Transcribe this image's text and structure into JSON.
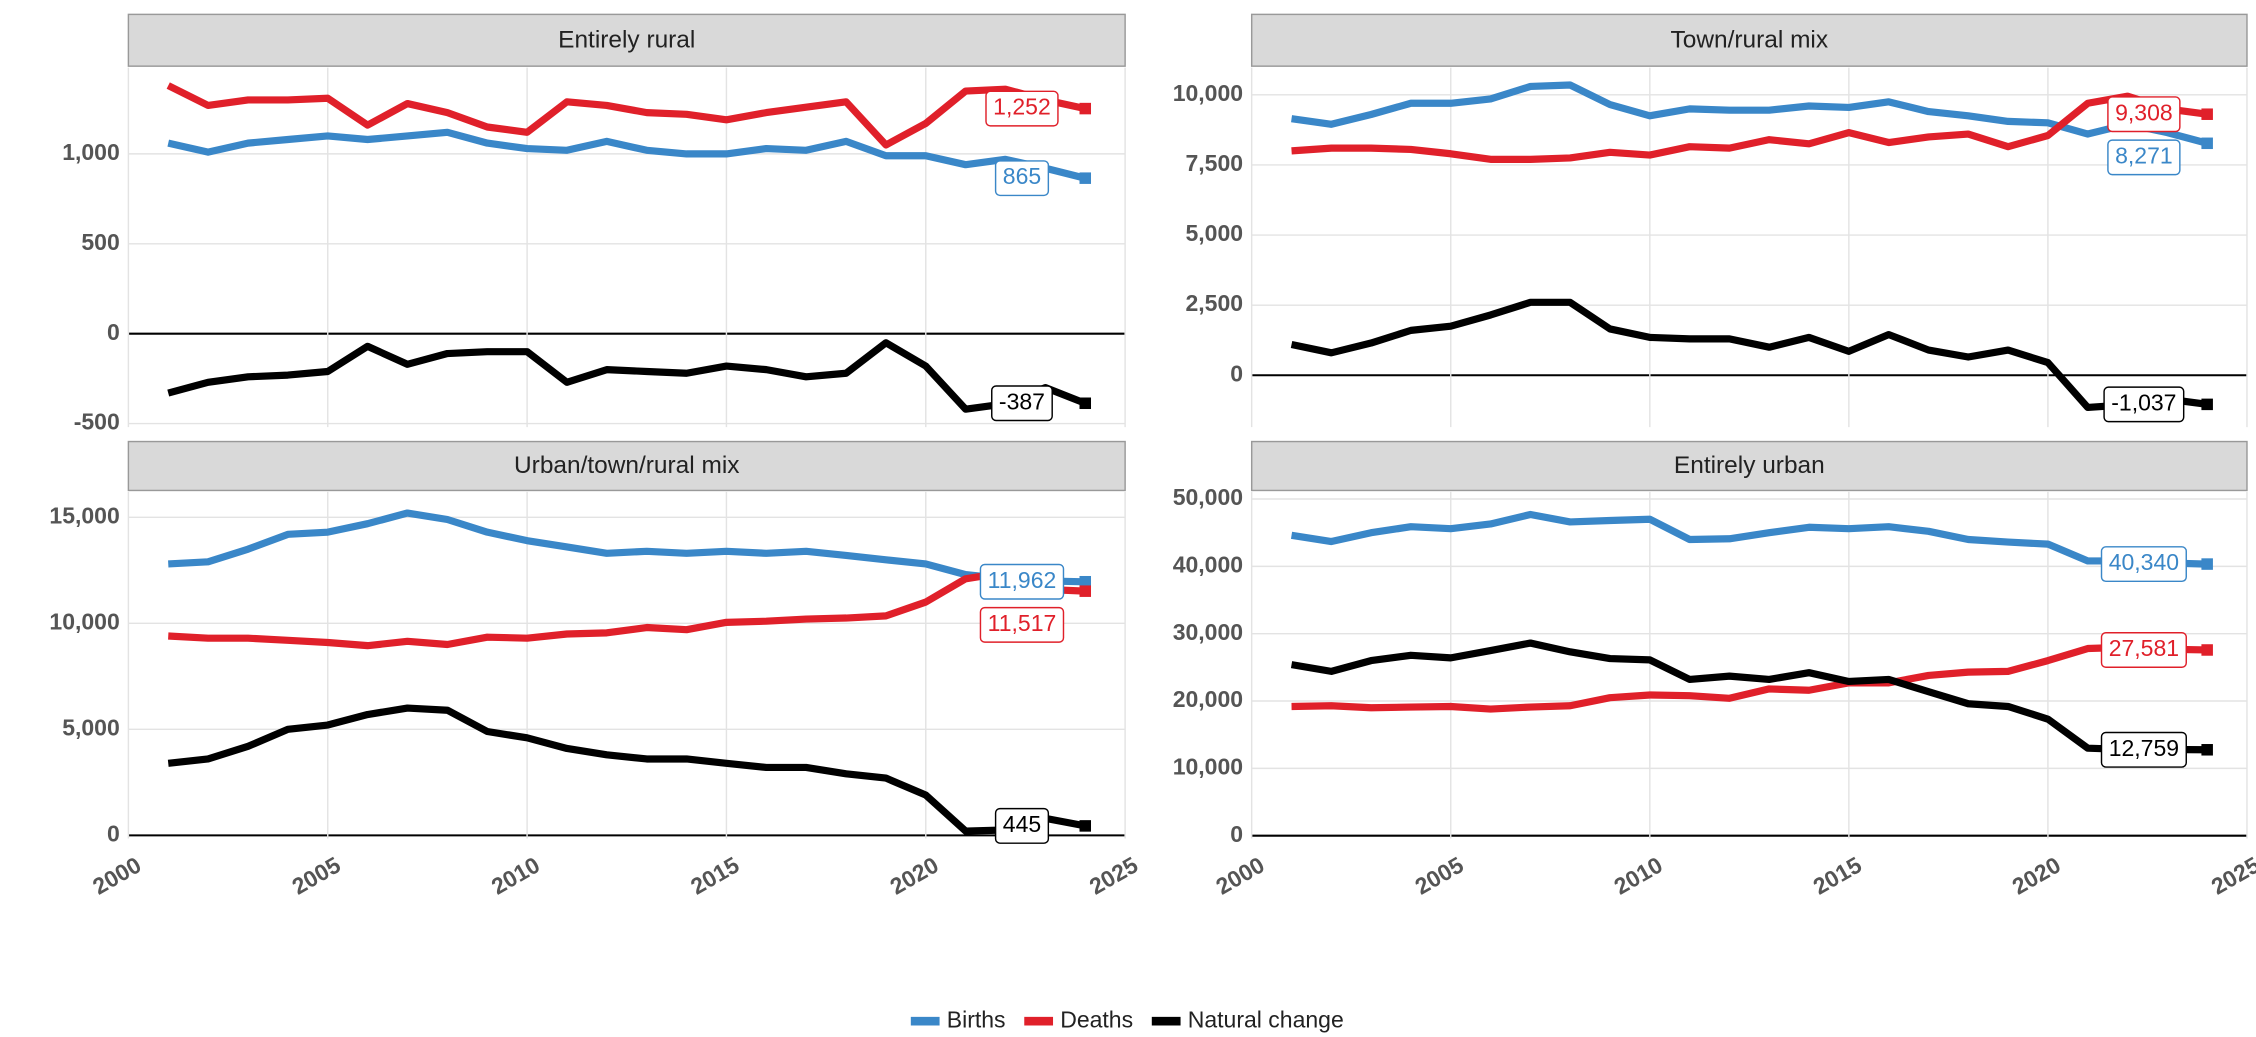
{
  "chart_data": [
    {
      "type": "line",
      "title": "Entirely rural",
      "x": [
        2001,
        2002,
        2003,
        2004,
        2005,
        2006,
        2007,
        2008,
        2009,
        2010,
        2011,
        2012,
        2013,
        2014,
        2015,
        2016,
        2017,
        2018,
        2019,
        2020,
        2021,
        2022,
        2023,
        2024
      ],
      "xlim": [
        2000,
        2025
      ],
      "xticks": [
        2000,
        2005,
        2010,
        2015,
        2020,
        2025
      ],
      "ylim": [
        -520,
        1480
      ],
      "yticks": [
        -500,
        0,
        500,
        {
          "value": 1000,
          "label": "1,000"
        }
      ],
      "grid": true,
      "series": [
        {
          "name": "Births",
          "color": "#3a87c8",
          "values": [
            1060,
            1010,
            1060,
            1080,
            1100,
            1080,
            1100,
            1120,
            1060,
            1030,
            1020,
            1070,
            1020,
            1000,
            1000,
            1030,
            1020,
            1070,
            990,
            990,
            940,
            970,
            920,
            865
          ],
          "value_labels": [
            null,
            null,
            null,
            null,
            null,
            null,
            null,
            null,
            null,
            null,
            null,
            null,
            null,
            null,
            null,
            null,
            null,
            null,
            null,
            null,
            null,
            null,
            null,
            "865"
          ]
        },
        {
          "name": "Deaths",
          "color": "#e0202a",
          "values": [
            1380,
            1270,
            1300,
            1300,
            1310,
            1160,
            1280,
            1230,
            1150,
            1120,
            1290,
            1270,
            1230,
            1220,
            1190,
            1230,
            1260,
            1290,
            1050,
            1170,
            1350,
            1360,
            1300,
            1252
          ],
          "value_labels": [
            null,
            null,
            null,
            null,
            null,
            null,
            null,
            null,
            null,
            null,
            null,
            null,
            null,
            null,
            null,
            null,
            null,
            null,
            null,
            null,
            null,
            null,
            null,
            "1,252"
          ]
        },
        {
          "name": "Natural change",
          "color": "#000000",
          "values": [
            -330,
            -270,
            -240,
            -230,
            -210,
            -70,
            -170,
            -110,
            -100,
            -100,
            -270,
            -200,
            -210,
            -220,
            -180,
            -200,
            -240,
            -220,
            -50,
            -180,
            -420,
            -390,
            -300,
            -387
          ],
          "value_labels": [
            null,
            null,
            null,
            null,
            null,
            null,
            null,
            null,
            null,
            null,
            null,
            null,
            null,
            null,
            null,
            null,
            null,
            null,
            null,
            null,
            null,
            null,
            null,
            "-387"
          ]
        }
      ]
    },
    {
      "type": "line",
      "title": "Town/rural mix",
      "x": [
        2001,
        2002,
        2003,
        2004,
        2005,
        2006,
        2007,
        2008,
        2009,
        2010,
        2011,
        2012,
        2013,
        2014,
        2015,
        2016,
        2017,
        2018,
        2019,
        2020,
        2021,
        2022,
        2023,
        2024
      ],
      "xlim": [
        2000,
        2025
      ],
      "xticks": [
        2000,
        2005,
        2010,
        2015,
        2020,
        2025
      ],
      "ylim": [
        -1850,
        10970
      ],
      "yticks": [
        0,
        {
          "value": 2500,
          "label": "2,500"
        },
        {
          "value": 5000,
          "label": "5,000"
        },
        {
          "value": 7500,
          "label": "7,500"
        },
        {
          "value": 10000,
          "label": "10,000"
        }
      ],
      "grid": true,
      "series": [
        {
          "name": "Births",
          "color": "#3a87c8",
          "values": [
            9150,
            8950,
            9300,
            9700,
            9700,
            9850,
            10300,
            10350,
            9650,
            9250,
            9500,
            9450,
            9450,
            9600,
            9550,
            9750,
            9400,
            9250,
            9050,
            9000,
            8600,
            8950,
            8650,
            8271
          ],
          "value_labels": [
            null,
            null,
            null,
            null,
            null,
            null,
            null,
            null,
            null,
            null,
            null,
            null,
            null,
            null,
            null,
            null,
            null,
            null,
            null,
            null,
            null,
            null,
            null,
            "8,271"
          ]
        },
        {
          "name": "Deaths",
          "color": "#e0202a",
          "values": [
            8000,
            8100,
            8100,
            8050,
            7900,
            7700,
            7700,
            7750,
            7950,
            7850,
            8150,
            8100,
            8400,
            8250,
            8650,
            8300,
            8500,
            8600,
            8150,
            8550,
            9700,
            9950,
            9500,
            9308
          ],
          "value_labels": [
            null,
            null,
            null,
            null,
            null,
            null,
            null,
            null,
            null,
            null,
            null,
            null,
            null,
            null,
            null,
            null,
            null,
            null,
            null,
            null,
            null,
            null,
            null,
            "9,308"
          ]
        },
        {
          "name": "Natural change",
          "color": "#000000",
          "values": [
            1100,
            800,
            1150,
            1600,
            1750,
            2150,
            2600,
            2600,
            1650,
            1350,
            1300,
            1300,
            1000,
            1350,
            850,
            1450,
            900,
            650,
            900,
            450,
            -1150,
            -1050,
            -850,
            -1037
          ],
          "value_labels": [
            null,
            null,
            null,
            null,
            null,
            null,
            null,
            null,
            null,
            null,
            null,
            null,
            null,
            null,
            null,
            null,
            null,
            null,
            null,
            null,
            null,
            null,
            null,
            "-1,037"
          ]
        }
      ]
    },
    {
      "type": "line",
      "title": "Urban/town/rural mix",
      "x": [
        2001,
        2002,
        2003,
        2004,
        2005,
        2006,
        2007,
        2008,
        2009,
        2010,
        2011,
        2012,
        2013,
        2014,
        2015,
        2016,
        2017,
        2018,
        2019,
        2020,
        2021,
        2022,
        2023,
        2024
      ],
      "xlim": [
        2000,
        2025
      ],
      "xticks": [
        2000,
        2005,
        2010,
        2015,
        2020,
        2025
      ],
      "ylim": [
        -150,
        16200
      ],
      "yticks": [
        0,
        {
          "value": 5000,
          "label": "5,000"
        },
        {
          "value": 10000,
          "label": "10,000"
        },
        {
          "value": 15000,
          "label": "15,000"
        }
      ],
      "grid": true,
      "series": [
        {
          "name": "Births",
          "color": "#3a87c8",
          "values": [
            12800,
            12900,
            13500,
            14200,
            14300,
            14700,
            15200,
            14900,
            14300,
            13900,
            13600,
            13300,
            13400,
            13300,
            13400,
            13300,
            13400,
            13200,
            13000,
            12800,
            12300,
            12100,
            12000,
            11962
          ],
          "value_labels": [
            null,
            null,
            null,
            null,
            null,
            null,
            null,
            null,
            null,
            null,
            null,
            null,
            null,
            null,
            null,
            null,
            null,
            null,
            null,
            null,
            null,
            null,
            null,
            "11,962"
          ]
        },
        {
          "name": "Deaths",
          "color": "#e0202a",
          "values": [
            9400,
            9300,
            9300,
            9200,
            9100,
            8950,
            9150,
            9000,
            9350,
            9300,
            9500,
            9550,
            9800,
            9700,
            10050,
            10100,
            10200,
            10250,
            10350,
            11000,
            12100,
            12400,
            11600,
            11517
          ],
          "value_labels": [
            null,
            null,
            null,
            null,
            null,
            null,
            null,
            null,
            null,
            null,
            null,
            null,
            null,
            null,
            null,
            null,
            null,
            null,
            null,
            null,
            null,
            null,
            null,
            "11,517"
          ]
        },
        {
          "name": "Natural change",
          "color": "#000000",
          "values": [
            3400,
            3600,
            4200,
            5000,
            5200,
            5700,
            6000,
            5900,
            4900,
            4600,
            4100,
            3800,
            3600,
            3600,
            3400,
            3200,
            3200,
            2900,
            2700,
            1900,
            200,
            250,
            800,
            445
          ],
          "value_labels": [
            null,
            null,
            null,
            null,
            null,
            null,
            null,
            null,
            null,
            null,
            null,
            null,
            null,
            null,
            null,
            null,
            null,
            null,
            null,
            null,
            null,
            null,
            null,
            "445"
          ]
        }
      ]
    },
    {
      "type": "line",
      "title": "Entirely urban",
      "x": [
        2001,
        2002,
        2003,
        2004,
        2005,
        2006,
        2007,
        2008,
        2009,
        2010,
        2011,
        2012,
        2013,
        2014,
        2015,
        2016,
        2017,
        2018,
        2019,
        2020,
        2021,
        2022,
        2023,
        2024
      ],
      "xlim": [
        2000,
        2025
      ],
      "xticks": [
        2000,
        2005,
        2010,
        2015,
        2020,
        2025
      ],
      "ylim": [
        -420,
        51060
      ],
      "yticks": [
        0,
        {
          "value": 10000,
          "label": "10,000"
        },
        {
          "value": 20000,
          "label": "20,000"
        },
        {
          "value": 30000,
          "label": "30,000"
        },
        {
          "value": 40000,
          "label": "40,000"
        },
        {
          "value": 50000,
          "label": "50,000"
        }
      ],
      "grid": true,
      "series": [
        {
          "name": "Births",
          "color": "#3a87c8",
          "values": [
            44600,
            43700,
            45000,
            45900,
            45600,
            46300,
            47700,
            46600,
            46800,
            47000,
            44000,
            44100,
            45000,
            45800,
            45600,
            45900,
            45200,
            44000,
            43600,
            43300,
            40800,
            40800,
            40500,
            40340
          ],
          "value_labels": [
            null,
            null,
            null,
            null,
            null,
            null,
            null,
            null,
            null,
            null,
            null,
            null,
            null,
            null,
            null,
            null,
            null,
            null,
            null,
            null,
            null,
            null,
            null,
            "40,340"
          ]
        },
        {
          "name": "Deaths",
          "color": "#e0202a",
          "values": [
            19200,
            19300,
            19000,
            19100,
            19200,
            18800,
            19100,
            19300,
            20500,
            20900,
            20800,
            20400,
            21800,
            21600,
            22700,
            22700,
            23800,
            24300,
            24400,
            26000,
            27800,
            28000,
            27700,
            27581
          ],
          "value_labels": [
            null,
            null,
            null,
            null,
            null,
            null,
            null,
            null,
            null,
            null,
            null,
            null,
            null,
            null,
            null,
            null,
            null,
            null,
            null,
            null,
            null,
            null,
            null,
            "27,581"
          ]
        },
        {
          "name": "Natural change",
          "color": "#000000",
          "values": [
            25400,
            24400,
            26000,
            26800,
            26400,
            27500,
            28600,
            27300,
            26300,
            26100,
            23200,
            23700,
            23200,
            24200,
            22900,
            23200,
            21400,
            19600,
            19200,
            17300,
            13000,
            12800,
            12800,
            12759
          ],
          "value_labels": [
            null,
            null,
            null,
            null,
            null,
            null,
            null,
            null,
            null,
            null,
            null,
            null,
            null,
            null,
            null,
            null,
            null,
            null,
            null,
            null,
            null,
            null,
            null,
            "12,759"
          ]
        }
      ]
    }
  ]
}
